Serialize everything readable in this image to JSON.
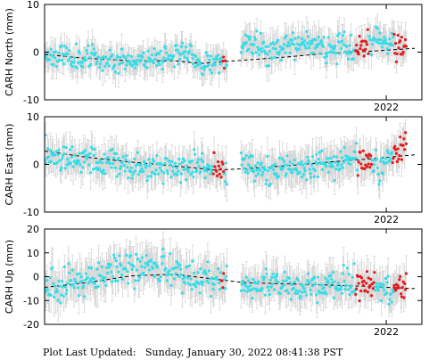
{
  "footer": {
    "label": "Plot Last Updated:",
    "timestamp": "Sunday, January 30, 2022 08:41:38 PST"
  },
  "colors": {
    "normal_points": "#33dde8",
    "recent_points": "#e41a1a",
    "error_bars": "#d3d3d3",
    "trend_line": "#000000",
    "axes": "#000000"
  },
  "chart_data": [
    {
      "type": "scatter",
      "ylabel": "CARH North (mm)",
      "ylim": [
        -10,
        10
      ],
      "yticks": [
        -10,
        0,
        10
      ],
      "xlim": [
        2019.6,
        2022.25
      ],
      "xticks": [
        {
          "value": 2022.0,
          "label": "2022"
        }
      ],
      "error_bars": true,
      "red_series_ranges": [
        [
          2020.85,
          2020.87
        ],
        [
          2021.78,
          2021.88
        ],
        [
          2022.05,
          2022.14
        ]
      ],
      "trend": [
        {
          "x": 2019.6,
          "y": -0.5
        },
        {
          "x": 2019.9,
          "y": -1.3
        },
        {
          "x": 2020.2,
          "y": -1.8
        },
        {
          "x": 2020.5,
          "y": -1.8
        },
        {
          "x": 2020.7,
          "y": -2.4
        },
        {
          "x": 2020.85,
          "y": -2.0
        },
        {
          "x": 2021.0,
          "y": -1.7
        },
        {
          "x": 2021.3,
          "y": -1.0
        },
        {
          "x": 2021.6,
          "y": -0.2
        },
        {
          "x": 2021.9,
          "y": 0.2
        },
        {
          "x": 2022.2,
          "y": 0.8
        }
      ],
      "segments": [
        {
          "x_start": 2019.6,
          "x_end": 2020.88,
          "n": 230,
          "seed": 11,
          "base": [
            {
              "x": 2019.6,
              "y": -0.6
            },
            {
              "x": 2019.9,
              "y": -1.2
            },
            {
              "x": 2020.2,
              "y": -1.8
            },
            {
              "x": 2020.45,
              "y": -0.8
            },
            {
              "x": 2020.55,
              "y": 0.4
            },
            {
              "x": 2020.7,
              "y": -2.6
            },
            {
              "x": 2020.88,
              "y": -2.0
            }
          ],
          "noise": 1.2,
          "err": 3.2
        },
        {
          "x_start": 2020.98,
          "x_end": 2022.14,
          "n": 220,
          "seed": 23,
          "base": [
            {
              "x": 2020.98,
              "y": 1.5
            },
            {
              "x": 2021.2,
              "y": 0.5
            },
            {
              "x": 2021.5,
              "y": 1.6
            },
            {
              "x": 2021.8,
              "y": 0.5
            },
            {
              "x": 2021.95,
              "y": 3.0
            },
            {
              "x": 2022.14,
              "y": 1.0
            }
          ],
          "noise": 1.4,
          "err": 3.6
        }
      ]
    },
    {
      "type": "scatter",
      "ylabel": "CARH East (mm)",
      "ylim": [
        -10,
        10
      ],
      "yticks": [
        -10,
        0,
        10
      ],
      "xlim": [
        2019.6,
        2022.25
      ],
      "xticks": [
        {
          "value": 2022.0,
          "label": "2022"
        }
      ],
      "error_bars": true,
      "red_series_ranges": [
        [
          2020.78,
          2020.86
        ],
        [
          2021.8,
          2021.9
        ],
        [
          2022.04,
          2022.14
        ]
      ],
      "trend": [
        {
          "x": 2019.6,
          "y": 2.8
        },
        {
          "x": 2019.9,
          "y": 1.5
        },
        {
          "x": 2020.2,
          "y": 0.5
        },
        {
          "x": 2020.5,
          "y": -0.3
        },
        {
          "x": 2020.8,
          "y": -1.2
        },
        {
          "x": 2021.0,
          "y": -0.9
        },
        {
          "x": 2021.3,
          "y": -0.3
        },
        {
          "x": 2021.6,
          "y": 0.5
        },
        {
          "x": 2021.9,
          "y": 1.2
        },
        {
          "x": 2022.2,
          "y": 2.0
        }
      ],
      "segments": [
        {
          "x_start": 2019.6,
          "x_end": 2020.88,
          "n": 230,
          "seed": 37,
          "base": [
            {
              "x": 2019.6,
              "y": 2.5
            },
            {
              "x": 2019.9,
              "y": 1.0
            },
            {
              "x": 2020.2,
              "y": -0.5
            },
            {
              "x": 2020.5,
              "y": -1.0
            },
            {
              "x": 2020.7,
              "y": -0.3
            },
            {
              "x": 2020.88,
              "y": -2.5
            }
          ],
          "noise": 1.5,
          "err": 3.8
        },
        {
          "x_start": 2020.98,
          "x_end": 2022.14,
          "n": 220,
          "seed": 53,
          "base": [
            {
              "x": 2020.98,
              "y": 0.3
            },
            {
              "x": 2021.2,
              "y": -1.5
            },
            {
              "x": 2021.5,
              "y": -0.5
            },
            {
              "x": 2021.8,
              "y": 1.5
            },
            {
              "x": 2021.95,
              "y": -0.5
            },
            {
              "x": 2022.14,
              "y": 4.5
            }
          ],
          "noise": 1.5,
          "err": 4.0
        }
      ]
    },
    {
      "type": "scatter",
      "ylabel": "CARH Up (mm)",
      "ylim": [
        -20,
        20
      ],
      "yticks": [
        -20,
        -10,
        0,
        10,
        20
      ],
      "xlim": [
        2019.6,
        2022.25
      ],
      "xticks": [
        {
          "value": 2022.0,
          "label": "2022"
        }
      ],
      "error_bars": true,
      "red_series_ranges": [
        [
          2020.84,
          2020.86
        ],
        [
          2021.78,
          2021.92
        ],
        [
          2022.05,
          2022.14
        ]
      ],
      "trend": [
        {
          "x": 2019.6,
          "y": -4.5
        },
        {
          "x": 2019.9,
          "y": -2.5
        },
        {
          "x": 2020.2,
          "y": 0.3
        },
        {
          "x": 2020.5,
          "y": 1.0
        },
        {
          "x": 2020.8,
          "y": -1.0
        },
        {
          "x": 2021.0,
          "y": -2.5
        },
        {
          "x": 2021.3,
          "y": -3.0
        },
        {
          "x": 2021.6,
          "y": -3.5
        },
        {
          "x": 2021.9,
          "y": -4.2
        },
        {
          "x": 2022.2,
          "y": -5.0
        }
      ],
      "segments": [
        {
          "x_start": 2019.6,
          "x_end": 2020.88,
          "n": 230,
          "seed": 71,
          "base": [
            {
              "x": 2019.6,
              "y": -5.0
            },
            {
              "x": 2019.9,
              "y": -1.0
            },
            {
              "x": 2020.1,
              "y": 4.0
            },
            {
              "x": 2020.3,
              "y": 3.5
            },
            {
              "x": 2020.5,
              "y": 2.5
            },
            {
              "x": 2020.7,
              "y": -1.0
            },
            {
              "x": 2020.88,
              "y": 0.0
            }
          ],
          "noise": 3.5,
          "err": 9.0
        },
        {
          "x_start": 2020.98,
          "x_end": 2022.14,
          "n": 220,
          "seed": 89,
          "base": [
            {
              "x": 2020.98,
              "y": -3.0
            },
            {
              "x": 2021.2,
              "y": -3.0
            },
            {
              "x": 2021.5,
              "y": -4.0
            },
            {
              "x": 2021.8,
              "y": -3.0
            },
            {
              "x": 2022.0,
              "y": -5.0
            },
            {
              "x": 2022.14,
              "y": -3.0
            }
          ],
          "noise": 3.0,
          "err": 8.0
        }
      ]
    }
  ]
}
